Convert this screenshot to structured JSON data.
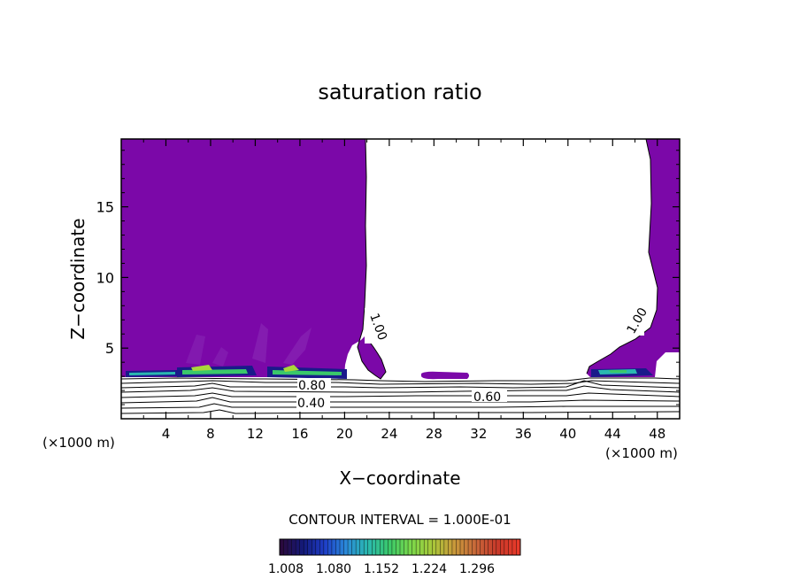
{
  "chart_data": {
    "type": "contour",
    "title": "saturation ratio",
    "xlabel": "X−coordinate",
    "ylabel": "Z−coordinate",
    "x_unit_left": "(×1000 m)",
    "x_unit_right": "(×1000 m)",
    "xlim": [
      0,
      50
    ],
    "ylim": [
      0,
      19.8
    ],
    "x_ticks": [
      4,
      8,
      12,
      16,
      20,
      24,
      28,
      32,
      36,
      40,
      44,
      48
    ],
    "x_tick_labels": [
      "4",
      "8",
      "12",
      "16",
      "20",
      "24",
      "28",
      "32",
      "36",
      "40",
      "44",
      "48"
    ],
    "y_ticks": [
      5,
      10,
      15
    ],
    "y_tick_labels": [
      "5",
      "10",
      "15"
    ],
    "contour_interval_text": "CONTOUR INTERVAL = 1.000E-01",
    "contour_labels": [
      {
        "text": "1.00",
        "x": 22.6,
        "z": 6.5,
        "angle": 70
      },
      {
        "text": "1.00",
        "x": 46.2,
        "z": 6.6,
        "angle": -60
      },
      {
        "text": "0.80",
        "x": 17.5,
        "z": 2.3,
        "angle": 0
      },
      {
        "text": "0.40",
        "x": 17.3,
        "z": 1.1,
        "angle": 0
      },
      {
        "text": "0.60",
        "x": 32.8,
        "z": 1.6,
        "angle": 0
      }
    ],
    "contour_levels_below_cloud": [
      0.3,
      0.4,
      0.5,
      0.6,
      0.7,
      0.8,
      0.9
    ],
    "saturated_region_color": "#7b08a8",
    "colorbar": {
      "tick_labels": [
        "1.008",
        "1.080",
        "1.152",
        "1.224",
        "1.296"
      ],
      "colors": [
        "#2a0a3e",
        "#141a7a",
        "#1e3ec8",
        "#2a8ad8",
        "#2ab8b0",
        "#3ac86a",
        "#7ad84a",
        "#a8c83a",
        "#c89a3a",
        "#c8683a",
        "#c83a2a",
        "#e83a2a"
      ]
    }
  }
}
